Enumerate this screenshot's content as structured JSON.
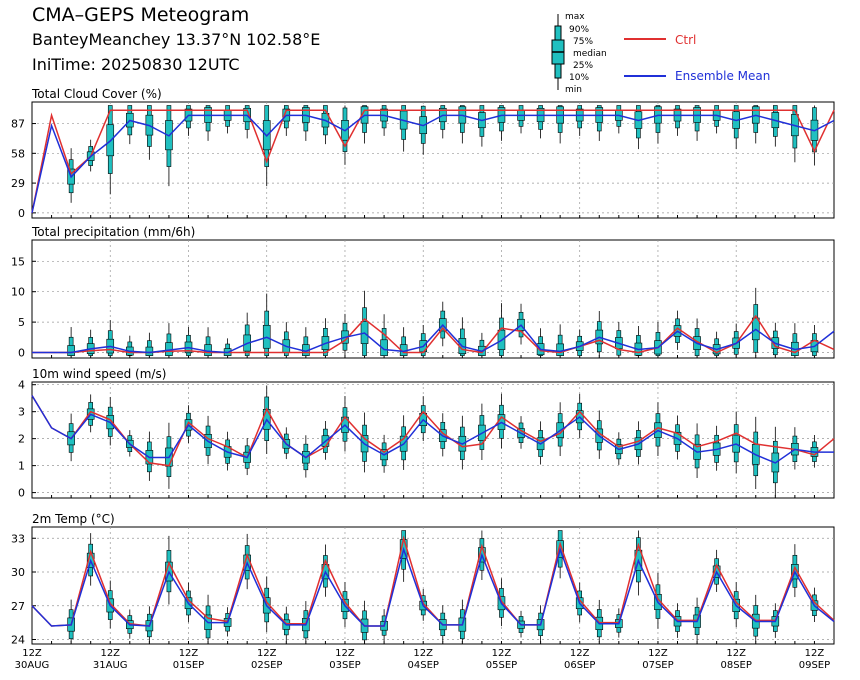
{
  "header": {
    "title": "CMA–GEPS Meteogram",
    "location": "BanteyMeanchey 13.37°N 102.58°E",
    "init_time": "IniTime: 20250830 12UTC"
  },
  "legend": {
    "box_labels": [
      "max",
      "90%",
      "75%",
      "median",
      "25%",
      "10%",
      "min"
    ],
    "ctrl_label": "Ctrl",
    "mean_label": "Ensemble Mean",
    "ctrl_color": "#e03030",
    "mean_color": "#2030d8",
    "box_color": "#20c0c0"
  },
  "chart_data": [
    {
      "type": "line",
      "title": "Total Cloud Cover (%)",
      "yticks": [
        0,
        29,
        58,
        87
      ],
      "ylim": [
        -5,
        108
      ],
      "x_step_hours": 6,
      "x_labels_top": [
        "12Z",
        "12Z",
        "12Z",
        "12Z",
        "12Z",
        "12Z",
        "12Z",
        "12Z",
        "12Z",
        "12Z",
        "12Z"
      ],
      "x_labels_bottom": [
        "30AUG",
        "31AUG",
        "01SEP",
        "02SEP",
        "03SEP",
        "04SEP",
        "05SEP",
        "06SEP",
        "07SEP",
        "08SEP",
        "09SEP"
      ],
      "series": [
        {
          "name": "Ctrl",
          "values": [
            0,
            95,
            38,
            55,
            100,
            100,
            100,
            100,
            100,
            100,
            100,
            100,
            50,
            100,
            100,
            100,
            65,
            100,
            100,
            100,
            100,
            100,
            100,
            100,
            100,
            100,
            100,
            100,
            100,
            100,
            100,
            100,
            100,
            100,
            100,
            100,
            100,
            100,
            100,
            100,
            60,
            100
          ]
        },
        {
          "name": "Ensemble Mean",
          "values": [
            0,
            85,
            35,
            55,
            70,
            90,
            85,
            75,
            95,
            95,
            95,
            95,
            75,
            95,
            95,
            90,
            80,
            95,
            95,
            90,
            85,
            95,
            95,
            90,
            95,
            95,
            95,
            95,
            95,
            95,
            95,
            90,
            95,
            95,
            95,
            95,
            90,
            95,
            90,
            85,
            80,
            90
          ]
        }
      ]
    },
    {
      "type": "line",
      "title": "Total precipitation (mm/6h)",
      "yticks": [
        0,
        5,
        10,
        15
      ],
      "ylim": [
        -0.9,
        18.5
      ],
      "series": [
        {
          "name": "Ctrl",
          "values": [
            0,
            0,
            0,
            0.3,
            0.5,
            0,
            0,
            0.2,
            0.3,
            0,
            0,
            0,
            0,
            0,
            0,
            0,
            2.0,
            5.5,
            3.0,
            0,
            0,
            4.0,
            0.5,
            0,
            4.0,
            3.5,
            0.3,
            0,
            1.0,
            2.0,
            0.5,
            0,
            0.8,
            4.0,
            1.8,
            0,
            1.5,
            6.0,
            1.0,
            0,
            2.0,
            0.5
          ]
        },
        {
          "name": "Ensemble Mean",
          "values": [
            0,
            0,
            0,
            0.6,
            1.0,
            0.2,
            0,
            0.4,
            0.8,
            0.2,
            0,
            1.5,
            2.5,
            1.0,
            0.2,
            1.5,
            2.5,
            3.2,
            0.5,
            0.2,
            1.0,
            4.5,
            1.0,
            0.2,
            2.0,
            4.5,
            0.5,
            0.2,
            1.0,
            2.5,
            1.5,
            0.5,
            0.8,
            3.5,
            1.5,
            0.5,
            1.5,
            3.8,
            1.5,
            0.5,
            1.0,
            3.5
          ]
        }
      ]
    },
    {
      "type": "line",
      "title": "10m wind speed (m/s)",
      "yticks": [
        0,
        1,
        2,
        3,
        4
      ],
      "ylim": [
        -0.2,
        4.1
      ],
      "series": [
        {
          "name": "Ctrl",
          "values": [
            3.6,
            2.4,
            2.0,
            3.0,
            2.7,
            1.8,
            1.1,
            1.0,
            2.6,
            2.0,
            1.7,
            1.3,
            3.1,
            1.8,
            1.3,
            1.7,
            2.8,
            2.0,
            1.5,
            2.0,
            3.0,
            2.2,
            1.7,
            1.8,
            2.8,
            2.3,
            1.9,
            2.2,
            3.0,
            2.2,
            1.7,
            1.9,
            2.4,
            2.2,
            1.7,
            1.9,
            2.2,
            1.8,
            1.7,
            1.6,
            1.4,
            2.0
          ]
        },
        {
          "name": "Ensemble Mean",
          "values": [
            3.6,
            2.4,
            2.0,
            2.9,
            2.6,
            1.8,
            1.3,
            1.3,
            2.5,
            1.9,
            1.5,
            1.3,
            2.7,
            1.8,
            1.3,
            1.9,
            2.5,
            1.8,
            1.4,
            1.8,
            2.7,
            2.1,
            1.8,
            2.2,
            2.6,
            2.2,
            1.8,
            2.3,
            2.8,
            2.1,
            1.6,
            1.8,
            2.3,
            2.0,
            1.5,
            1.6,
            1.8,
            1.4,
            1.1,
            1.6,
            1.5,
            1.5
          ]
        }
      ]
    },
    {
      "type": "line",
      "title": "2m Temp (°C)",
      "yticks": [
        24,
        27,
        30,
        33
      ],
      "ylim": [
        23.6,
        34.0
      ],
      "series": [
        {
          "name": "Ctrl",
          "values": [
            27.0,
            25.2,
            25.3,
            31.8,
            27.2,
            25.4,
            25.2,
            30.8,
            27.5,
            25.9,
            25.6,
            31.5,
            27.3,
            25.4,
            25.4,
            31.0,
            27.3,
            25.2,
            25.2,
            33.0,
            27.2,
            25.3,
            25.3,
            32.3,
            27.4,
            25.3,
            25.3,
            32.5,
            27.5,
            25.5,
            25.5,
            32.4,
            27.6,
            25.7,
            25.7,
            30.6,
            27.3,
            25.7,
            25.7,
            30.4,
            27.3,
            25.7
          ]
        },
        {
          "name": "Ensemble Mean",
          "values": [
            27.0,
            25.2,
            25.3,
            31.0,
            27.0,
            25.3,
            25.2,
            30.0,
            27.2,
            25.5,
            25.5,
            30.8,
            27.0,
            25.3,
            25.3,
            30.0,
            27.0,
            25.2,
            25.2,
            32.0,
            27.0,
            25.3,
            25.3,
            31.5,
            27.2,
            25.3,
            25.3,
            32.0,
            27.2,
            25.4,
            25.4,
            31.0,
            27.3,
            25.6,
            25.6,
            30.0,
            27.0,
            25.6,
            25.6,
            30.0,
            27.0,
            25.6
          ]
        }
      ]
    }
  ]
}
